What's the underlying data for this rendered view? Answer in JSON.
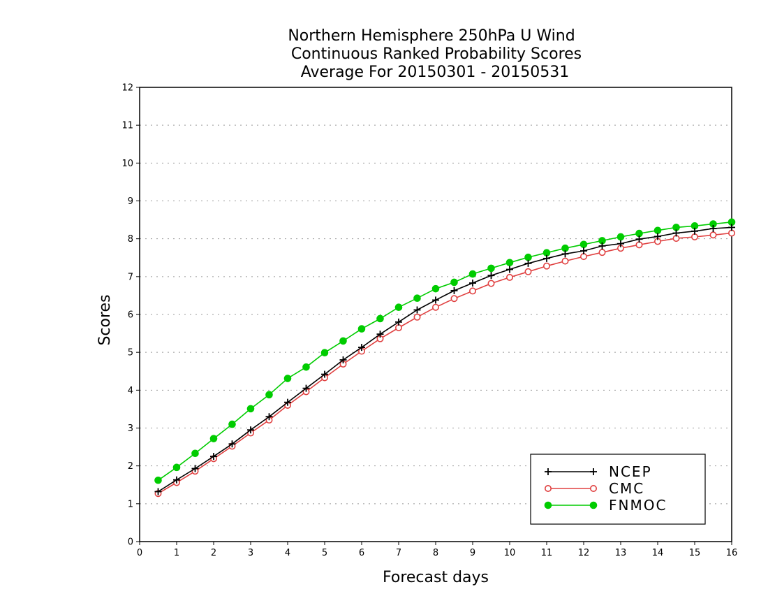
{
  "chart_data": {
    "type": "line",
    "title": [
      "Northern Hemisphere 250hPa U Wind",
      "Continuous Ranked Probability Scores",
      "Average For 20150301 - 20150531"
    ],
    "xlabel": "Forecast days",
    "ylabel": "Scores",
    "xlim": [
      0,
      16
    ],
    "ylim": [
      0,
      12
    ],
    "xticks": [
      "0",
      "1",
      "2",
      "3",
      "4",
      "5",
      "6",
      "7",
      "8",
      "9",
      "10",
      "11",
      "12",
      "13",
      "14",
      "15",
      "16"
    ],
    "yticks": [
      "0",
      "1",
      "2",
      "3",
      "4",
      "5",
      "6",
      "7",
      "8",
      "9",
      "10",
      "11",
      "12"
    ],
    "grid": true,
    "legend_position": "bottom-right",
    "x": [
      0.5,
      1,
      1.5,
      2,
      2.5,
      3,
      3.5,
      4,
      4.5,
      5,
      5.5,
      6,
      6.5,
      7,
      7.5,
      8,
      8.5,
      9,
      9.5,
      10,
      10.5,
      11,
      11.5,
      12,
      12.5,
      13,
      13.5,
      14,
      14.5,
      15,
      15.5,
      16
    ],
    "series": [
      {
        "name": "NCEP",
        "color": "#000000",
        "marker": "plus",
        "values": [
          1.32,
          1.63,
          1.93,
          2.25,
          2.58,
          2.95,
          3.3,
          3.68,
          4.05,
          4.42,
          4.8,
          5.13,
          5.48,
          5.8,
          6.12,
          6.38,
          6.63,
          6.83,
          7.03,
          7.19,
          7.35,
          7.48,
          7.6,
          7.68,
          7.81,
          7.87,
          7.99,
          8.06,
          8.15,
          8.2,
          8.27,
          8.3
        ]
      },
      {
        "name": "CMC",
        "color": "#e04040",
        "marker": "open-circle",
        "values": [
          1.27,
          1.56,
          1.86,
          2.19,
          2.52,
          2.87,
          3.21,
          3.6,
          3.96,
          4.33,
          4.69,
          5.03,
          5.36,
          5.65,
          5.93,
          6.19,
          6.42,
          6.62,
          6.82,
          6.98,
          7.13,
          7.28,
          7.41,
          7.53,
          7.64,
          7.75,
          7.84,
          7.93,
          8.01,
          8.05,
          8.1,
          8.15
        ]
      },
      {
        "name": "FNMOC",
        "color": "#00cc00",
        "marker": "filled-circle",
        "values": [
          1.62,
          1.96,
          2.33,
          2.72,
          3.1,
          3.51,
          3.88,
          4.31,
          4.61,
          4.99,
          5.3,
          5.62,
          5.89,
          6.19,
          6.43,
          6.68,
          6.85,
          7.07,
          7.22,
          7.37,
          7.51,
          7.63,
          7.75,
          7.85,
          7.95,
          8.05,
          8.14,
          8.22,
          8.3,
          8.34,
          8.39,
          8.44
        ]
      }
    ]
  }
}
